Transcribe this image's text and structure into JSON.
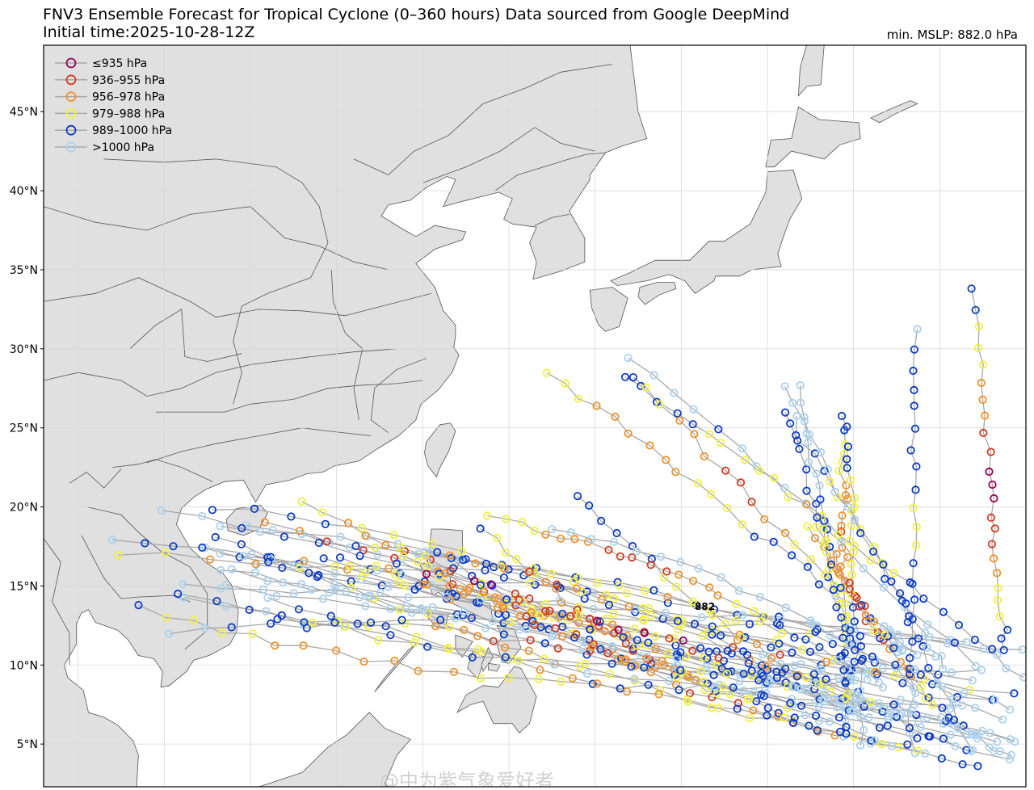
{
  "header": {
    "title_line1": "FNV3 Ensemble Forecast for Tropical Cyclone (0–360 hours) Data sourced from Google DeepMind",
    "title_line2": "Initial time:2025-10-28-12Z",
    "min_mslp": "min. MSLP: 882.0 hPa"
  },
  "map": {
    "projection": "PlateCarree",
    "lon_range": [
      98,
      155
    ],
    "lat_range": [
      2.3,
      49.2
    ],
    "lat_ticks": [
      "5°N",
      "10°N",
      "15°N",
      "20°N",
      "25°N",
      "30°N",
      "35°N",
      "40°N",
      "45°N"
    ],
    "land_color": "#e0e0e0",
    "border_color": "#555555",
    "track_line_color": "#a8a8a8"
  },
  "legend": {
    "position": "top-left",
    "items": [
      {
        "label": "≤935 hPa",
        "color": "#990055"
      },
      {
        "label": "936–955 hPa",
        "color": "#d43a1c"
      },
      {
        "label": "956–978 hPa",
        "color": "#f2922a"
      },
      {
        "label": "979–988 hPa",
        "color": "#f3f03a"
      },
      {
        "label": "989–1000 hPa",
        "color": "#0a3dc7"
      },
      {
        "label": ">1000 hPa",
        "color": "#a9d2f0"
      }
    ]
  },
  "annotation": {
    "text": "882"
  },
  "watermark": {
    "text": "@中为紫气象爱好者"
  }
}
